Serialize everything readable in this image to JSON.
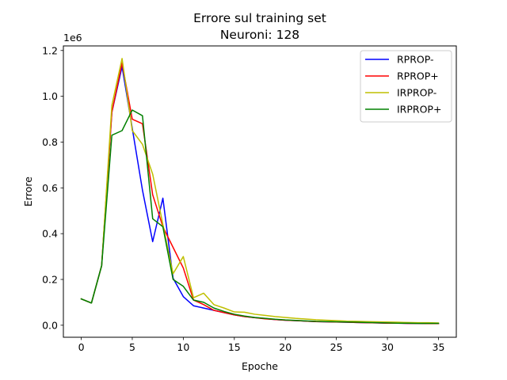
{
  "chart_data": {
    "type": "line",
    "title": "Errore sul training set",
    "subtitle": "Neuroni: 128",
    "xlabel": "Epoche",
    "ylabel": "Errore",
    "y_offset_label": "1e6",
    "xlim": [
      -1.75,
      36.75
    ],
    "ylim": [
      -0.0525,
      1.22
    ],
    "x_ticks": [
      0,
      5,
      10,
      15,
      20,
      25,
      30,
      35
    ],
    "y_ticks": [
      0.0,
      0.2,
      0.4,
      0.6,
      0.8,
      1.0,
      1.2
    ],
    "x_tick_labels": [
      "0",
      "5",
      "10",
      "15",
      "20",
      "25",
      "30",
      "35"
    ],
    "y_tick_labels": [
      "0.0",
      "0.2",
      "0.4",
      "0.6",
      "0.8",
      "1.0",
      "1.2"
    ],
    "grid": false,
    "legend_position": "top-right",
    "x": [
      0,
      1,
      2,
      3,
      4,
      5,
      6,
      7,
      8,
      9,
      10,
      11,
      12,
      13,
      14,
      15,
      16,
      17,
      18,
      19,
      20,
      21,
      22,
      23,
      24,
      25,
      26,
      27,
      28,
      29,
      30,
      31,
      32,
      33,
      34,
      35
    ],
    "series": [
      {
        "name": "RPROP-",
        "color": "#0000ff",
        "values": [
          0.115,
          0.097,
          0.26,
          0.93,
          1.13,
          0.86,
          0.59,
          0.365,
          0.555,
          0.205,
          0.125,
          0.085,
          0.075,
          0.065,
          0.055,
          0.045,
          0.038,
          0.033,
          0.029,
          0.025,
          0.022,
          0.02,
          0.018,
          0.016,
          0.015,
          0.014,
          0.013,
          0.012,
          0.011,
          0.01,
          0.009,
          0.009,
          0.008,
          0.008,
          0.007,
          0.007
        ]
      },
      {
        "name": "RPROP+",
        "color": "#ff0000",
        "values": [
          0.115,
          0.097,
          0.26,
          0.93,
          1.145,
          0.9,
          0.88,
          0.57,
          0.43,
          0.34,
          0.25,
          0.11,
          0.09,
          0.065,
          0.055,
          0.045,
          0.038,
          0.033,
          0.028,
          0.025,
          0.022,
          0.02,
          0.018,
          0.016,
          0.015,
          0.014,
          0.013,
          0.012,
          0.011,
          0.01,
          0.009,
          0.009,
          0.008,
          0.008,
          0.007,
          0.007
        ]
      },
      {
        "name": "IRPROP-",
        "color": "#bfbf00",
        "values": [
          0.115,
          0.097,
          0.26,
          0.96,
          1.165,
          0.85,
          0.79,
          0.66,
          0.44,
          0.225,
          0.3,
          0.12,
          0.14,
          0.09,
          0.075,
          0.058,
          0.057,
          0.048,
          0.043,
          0.038,
          0.034,
          0.03,
          0.027,
          0.024,
          0.022,
          0.02,
          0.018,
          0.017,
          0.016,
          0.015,
          0.014,
          0.013,
          0.012,
          0.011,
          0.011,
          0.01
        ]
      },
      {
        "name": "IRPROP+",
        "color": "#008000",
        "values": [
          0.115,
          0.097,
          0.26,
          0.83,
          0.85,
          0.94,
          0.915,
          0.465,
          0.43,
          0.2,
          0.17,
          0.11,
          0.1,
          0.075,
          0.06,
          0.048,
          0.04,
          0.034,
          0.03,
          0.026,
          0.023,
          0.021,
          0.019,
          0.017,
          0.016,
          0.015,
          0.014,
          0.013,
          0.012,
          0.011,
          0.01,
          0.009,
          0.009,
          0.008,
          0.008,
          0.008
        ]
      }
    ]
  }
}
